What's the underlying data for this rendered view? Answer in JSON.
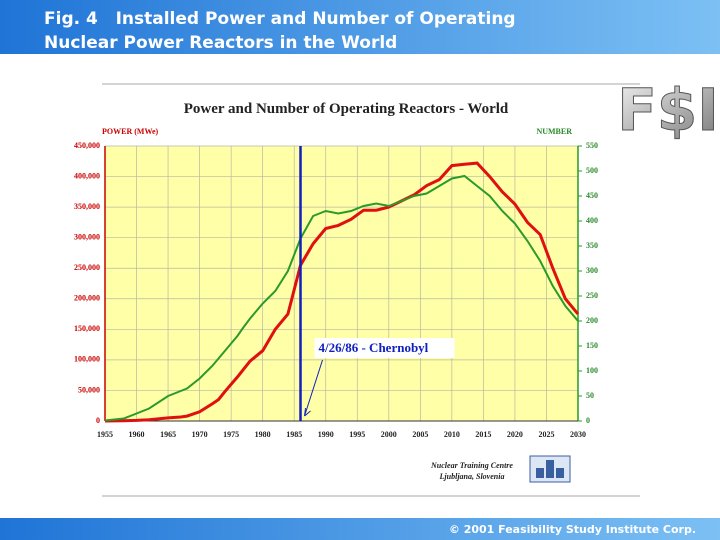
{
  "header": {
    "title": [
      "Fig. 4   Installed Power and Number of Operating",
      "Nuclear Power Reactors in the World"
    ]
  },
  "logo": "F$I",
  "footer": "© 2001 Feasibility Study Institute Corp.",
  "chart_data": {
    "type": "line",
    "title": "Power and Number of Operating Reactors - World",
    "ylabel": "POWER (MWe)",
    "y2label": "NUMBER",
    "x": [
      1955,
      1958,
      1960,
      1962,
      1965,
      1967,
      1968,
      1970,
      1972,
      1973,
      1974,
      1975,
      1976,
      1977,
      1978,
      1980,
      1982,
      1984,
      1986,
      1988,
      1990,
      1992,
      1994,
      1996,
      1998,
      2000,
      2002,
      2004,
      2006,
      2008,
      2010,
      2012,
      2014,
      2016,
      2018,
      2020,
      2022,
      2024,
      2026,
      2028,
      2030
    ],
    "series": [
      {
        "color": "#e01010",
        "axis": "y",
        "values": [
          0,
          500,
          1000,
          2000,
          5000,
          6500,
          8000,
          15000,
          28000,
          35000,
          48000,
          60000,
          72000,
          85000,
          98000,
          115000,
          150000,
          175000,
          255000,
          290000,
          315000,
          320000,
          330000,
          345000,
          345000,
          350000,
          360000,
          370000,
          385000,
          395000,
          418000,
          420000,
          422000,
          400000,
          375000,
          355000,
          325000,
          305000,
          250000,
          200000,
          175000
        ]
      },
      {
        "color": "#2a9a2a",
        "axis": "y2",
        "values": [
          1,
          5,
          15,
          25,
          50,
          60,
          65,
          85,
          110,
          125,
          140,
          155,
          170,
          188,
          205,
          235,
          260,
          300,
          365,
          410,
          420,
          415,
          420,
          430,
          435,
          430,
          440,
          450,
          455,
          470,
          485,
          490,
          470,
          450,
          420,
          395,
          360,
          320,
          270,
          230,
          200
        ]
      }
    ],
    "xlim": [
      1955,
      2030
    ],
    "xticks": [
      1955,
      1960,
      1965,
      1970,
      1975,
      1980,
      1985,
      1990,
      1995,
      2000,
      2005,
      2010,
      2015,
      2020,
      2025,
      2030
    ],
    "ylim": [
      0,
      450000
    ],
    "yticks": [
      0,
      {
        "value": 50000,
        "label": "50,000"
      },
      {
        "value": 100000,
        "label": "100,000"
      },
      {
        "value": 150000,
        "label": "150,000"
      },
      {
        "value": 200000,
        "label": "200,000"
      },
      {
        "value": 250000,
        "label": "250,000"
      },
      {
        "value": 300000,
        "label": "300,000"
      },
      {
        "value": 350000,
        "label": "350,000"
      },
      {
        "value": 400000,
        "label": "400,000"
      },
      {
        "value": 450000,
        "label": "450,000"
      }
    ],
    "y2lim": [
      0,
      550
    ],
    "y2ticks": [
      0,
      50,
      100,
      150,
      200,
      250,
      300,
      350,
      400,
      450,
      500,
      550
    ],
    "grid": true,
    "annotations": [
      {
        "x": 1986,
        "text": "4/26/86 - Chernobyl"
      }
    ],
    "source": [
      "Nuclear Training Centre",
      "Ljubljana, Slovenia"
    ]
  }
}
